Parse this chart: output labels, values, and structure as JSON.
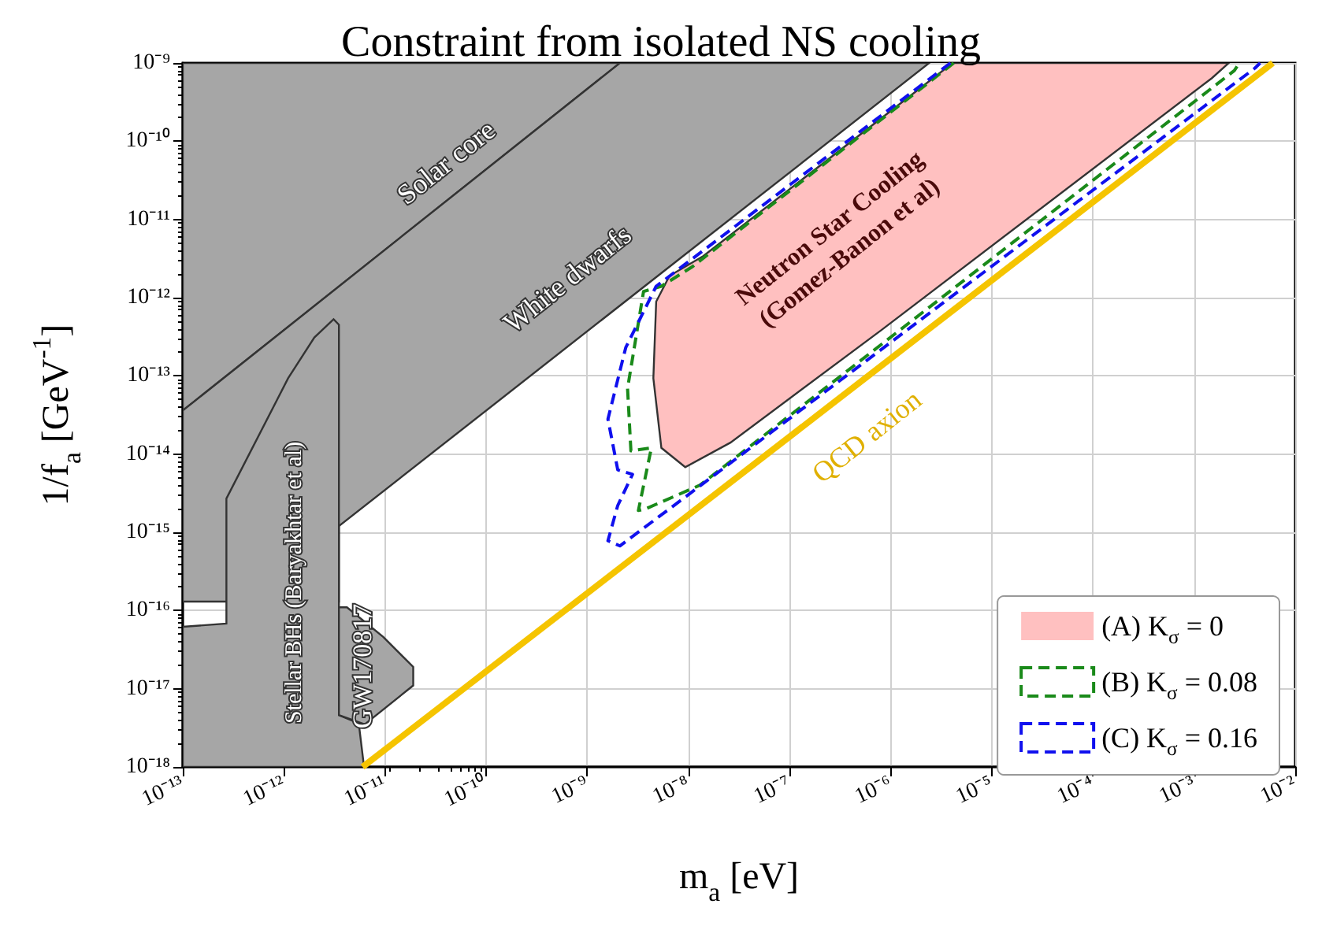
{
  "chart_data": {
    "type": "area",
    "title": "Constraint from isolated NS cooling",
    "xlabel": "m$_{a}$ [eV]",
    "ylabel": "1/f$_{a}$ [GeV$^{-1}$]",
    "log": "xy",
    "grid": true,
    "legend": "bottom right",
    "xlim": [
      1e-13,
      0.01
    ],
    "ylim": [
      1e-18,
      1e-09
    ],
    "xticks": [
      {
        "value": 1e-13,
        "label": "10⁻¹³"
      },
      {
        "value": 1e-12,
        "label": "10⁻¹²"
      },
      {
        "value": 1e-11,
        "label": "10⁻¹¹"
      },
      {
        "value": 1e-10,
        "label": "10⁻¹⁰"
      },
      {
        "value": 1e-09,
        "label": "10⁻⁹"
      },
      {
        "value": 1e-08,
        "label": "10⁻⁸"
      },
      {
        "value": 1e-07,
        "label": "10⁻⁷"
      },
      {
        "value": 1e-06,
        "label": "10⁻⁶"
      },
      {
        "value": 1e-05,
        "label": "10⁻⁵"
      },
      {
        "value": 0.0001,
        "label": "10⁻⁴"
      },
      {
        "value": 0.001,
        "label": "10⁻³"
      },
      {
        "value": 0.01,
        "label": "10⁻²"
      }
    ],
    "yticks": [
      {
        "value": 1e-18,
        "label": "10⁻¹⁸"
      },
      {
        "value": 1e-17,
        "label": "10⁻¹⁷"
      },
      {
        "value": 1e-16,
        "label": "10⁻¹⁶"
      },
      {
        "value": 1e-15,
        "label": "10⁻¹⁵"
      },
      {
        "value": 1e-14,
        "label": "10⁻¹⁴"
      },
      {
        "value": 1e-13,
        "label": "10⁻¹³"
      },
      {
        "value": 1e-12,
        "label": "10⁻¹²"
      },
      {
        "value": 1e-11,
        "label": "10⁻¹¹"
      },
      {
        "value": 1e-10,
        "label": "10⁻¹⁰"
      },
      {
        "value": 1e-09,
        "label": "10⁻⁹"
      }
    ],
    "series": [
      {
        "color": "#a6a6a6",
        "x": [
          1e-13,
          2.1e-09,
          1e-13
        ],
        "values": [
          3.6e-14,
          1e-09,
          1e-09
        ]
      },
      {
        "color": "#a6a6a6",
        "x": [
          1e-13,
          2.1e-09,
          2.4e-06,
          3.5e-12,
          3.5e-12,
          1e-13
        ],
        "values": [
          3.6e-14,
          1e-09,
          1e-09,
          1.2e-15,
          1.3e-16,
          1.3e-16
        ]
      },
      {
        "color": "#a6a6a6",
        "x": [
          1e-13,
          1e-13,
          2.7e-13,
          2.7e-13,
          1.1e-12,
          2e-12,
          3.1e-12,
          3.5e-12,
          3.5e-12,
          5.5e-12,
          6.2e-12
        ],
        "values": [
          1e-18,
          6.2e-17,
          6.8e-17,
          2.7e-15,
          9.3e-14,
          3.1e-13,
          5.3e-13,
          4.5e-13,
          4.6e-18,
          3.6e-18,
          1e-18
        ]
      },
      {
        "color": "#a6a6a6",
        "x": [
          3.5e-12,
          4.2e-12,
          9.6e-12,
          1.9e-11,
          1.9e-11,
          6.3e-12,
          3.5e-12
        ],
        "values": [
          1.1e-16,
          1.1e-16,
          4.6e-17,
          1.9e-17,
          1.1e-17,
          3.5e-18,
          4.6e-18
        ]
      },
      {
        "name": "(A) K$_{σ}$ = 0",
        "color": "#ffc0c0",
        "x": [
          4.8e-09,
          4.5e-09,
          5.4e-09,
          9.3e-09,
          2.6e-08,
          8.2e-07,
          0.0015,
          0.0022,
          4.1e-06,
          1.4e-08,
          6.5e-09
        ],
        "values": [
          8.9e-13,
          9.3e-14,
          1.2e-14,
          6.8e-15,
          1.4e-14,
          3.9e-13,
          6.4e-10,
          1e-09,
          1e-09,
          3.4e-12,
          1.9e-12
        ]
      },
      {
        "type": "line",
        "name": "(B) K$_{σ}$ = 0.08",
        "color": "#1a8a1a",
        "line_style": "dashed",
        "x": [
          4.2e-06,
          1.1e-08,
          5.4e-09,
          3.6e-09,
          2.5e-09,
          2.7e-09,
          4.3e-09,
          3.2e-09,
          3.8e-09,
          1.3e-08,
          0.0025,
          0.0028
        ],
        "values": [
          1e-09,
          2.5e-12,
          1.4e-12,
          1.2e-12,
          6.9e-14,
          1.1e-14,
          1.2e-14,
          1.9e-15,
          2e-15,
          4e-15,
          8e-10,
          1e-09
        ]
      },
      {
        "type": "line",
        "name": "(C) K$_{σ}$ = 0.16",
        "color": "#1010ee",
        "line_style": "dashed",
        "x": [
          3.9e-06,
          4.8e-09,
          2.4e-09,
          1.6e-09,
          2e-09,
          2.8e-09,
          2e-09,
          1.6e-09,
          2.1e-09,
          9.9e-09,
          0.004,
          0.0045
        ],
        "values": [
          1e-09,
          1.4e-12,
          2.3e-13,
          2.8e-14,
          6.3e-15,
          5.5e-15,
          2.2e-15,
          7.8e-16,
          6.7e-16,
          3e-15,
          8.6e-10,
          1e-09
        ]
      },
      {
        "type": "line",
        "color": "#f5c400",
        "line_style": "solid",
        "x": [
          6e-12,
          0.006
        ],
        "values": [
          1e-18,
          1e-09
        ]
      }
    ],
    "annotations": [
      "Solar core",
      "White dwarfs",
      "Neutron Star Cooling\n(Gomez-Banon et al)",
      "Stellar BHs (Baryakhtar et al)",
      "GW170817",
      "QCD axion"
    ]
  }
}
